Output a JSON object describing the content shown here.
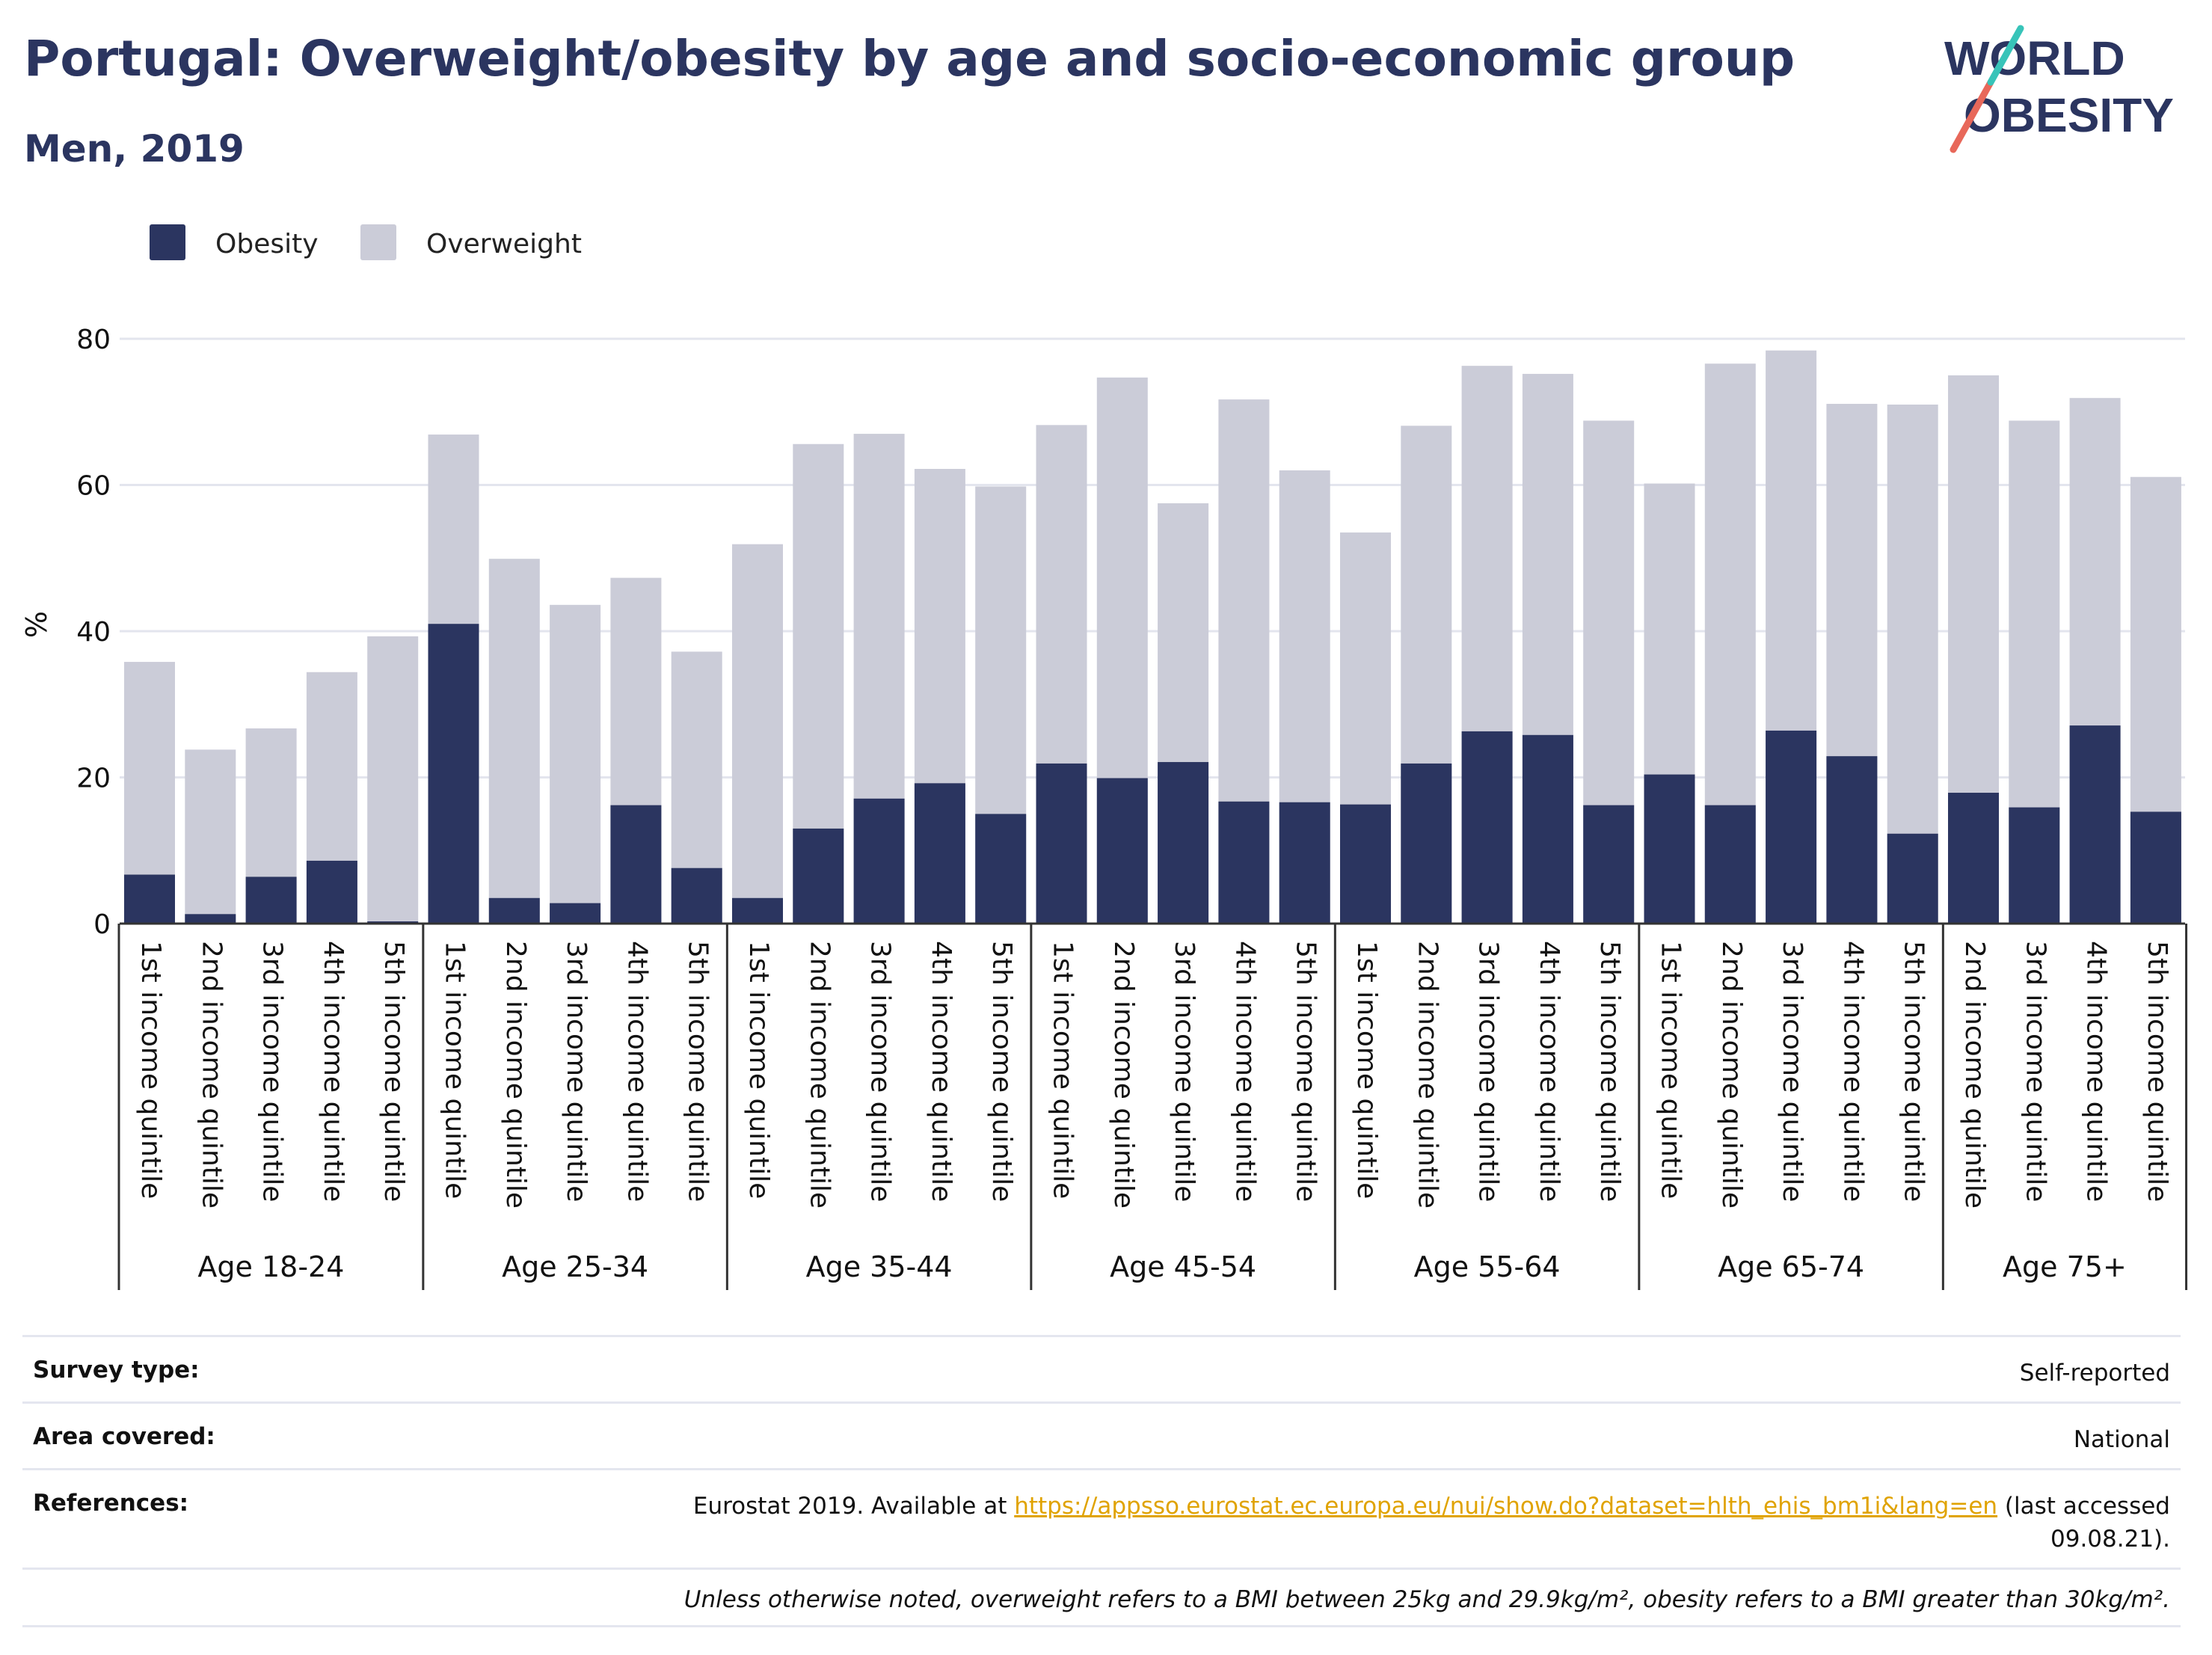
{
  "header": {
    "title": "Portugal: Overweight/obesity by age and socio-economic group",
    "subtitle": "Men, 2019"
  },
  "logo": {
    "line1": "WORLD",
    "line2": "OBESITY"
  },
  "colors": {
    "obesity": "#2b3560",
    "overweight": "#cbccd8",
    "grid": "#e3e5ee",
    "accent_red": "#e8685a",
    "accent_teal": "#38c4b9",
    "link": "#e0a300"
  },
  "chart_data": {
    "type": "bar",
    "stacked": true,
    "ylabel": "%",
    "ylim": [
      0,
      80
    ],
    "yticks": [
      0,
      20,
      40,
      60,
      80
    ],
    "grid": true,
    "legend_position": "top-left",
    "series": [
      {
        "name": "Obesity",
        "color": "#2b3560"
      },
      {
        "name": "Overweight",
        "color": "#cbccd8"
      }
    ],
    "groups": [
      {
        "label": "Age 18-24",
        "bars": [
          {
            "category": "1st income quintile",
            "obesity": 6.7,
            "overweight": 29.1
          },
          {
            "category": "2nd income quintile",
            "obesity": 1.3,
            "overweight": 22.5
          },
          {
            "category": "3rd income quintile",
            "obesity": 6.4,
            "overweight": 20.3
          },
          {
            "category": "4th income quintile",
            "obesity": 8.6,
            "overweight": 25.8
          },
          {
            "category": "5th income quintile",
            "obesity": 0.3,
            "overweight": 39.0
          }
        ]
      },
      {
        "label": "Age 25-34",
        "bars": [
          {
            "category": "1st income quintile",
            "obesity": 41.0,
            "overweight": 25.9
          },
          {
            "category": "2nd income quintile",
            "obesity": 3.5,
            "overweight": 46.4
          },
          {
            "category": "3rd income quintile",
            "obesity": 2.8,
            "overweight": 40.8
          },
          {
            "category": "4th income quintile",
            "obesity": 16.2,
            "overweight": 31.1
          },
          {
            "category": "5th income quintile",
            "obesity": 7.6,
            "overweight": 29.6
          }
        ]
      },
      {
        "label": "Age 35-44",
        "bars": [
          {
            "category": "1st income quintile",
            "obesity": 3.5,
            "overweight": 48.4
          },
          {
            "category": "2nd income quintile",
            "obesity": 13.0,
            "overweight": 52.6
          },
          {
            "category": "3rd income quintile",
            "obesity": 17.1,
            "overweight": 49.9
          },
          {
            "category": "4th income quintile",
            "obesity": 19.2,
            "overweight": 43.0
          },
          {
            "category": "5th income quintile",
            "obesity": 15.0,
            "overweight": 44.8
          }
        ]
      },
      {
        "label": "Age 45-54",
        "bars": [
          {
            "category": "1st income quintile",
            "obesity": 21.9,
            "overweight": 46.3
          },
          {
            "category": "2nd income quintile",
            "obesity": 19.9,
            "overweight": 54.8
          },
          {
            "category": "3rd income quintile",
            "obesity": 22.1,
            "overweight": 35.4
          },
          {
            "category": "4th income quintile",
            "obesity": 16.7,
            "overweight": 55.0
          },
          {
            "category": "5th income quintile",
            "obesity": 16.6,
            "overweight": 45.4
          }
        ]
      },
      {
        "label": "Age 55-64",
        "bars": [
          {
            "category": "1st income quintile",
            "obesity": 16.3,
            "overweight": 37.2
          },
          {
            "category": "2nd income quintile",
            "obesity": 21.9,
            "overweight": 46.2
          },
          {
            "category": "3rd income quintile",
            "obesity": 26.3,
            "overweight": 50.0
          },
          {
            "category": "4th income quintile",
            "obesity": 25.8,
            "overweight": 49.4
          },
          {
            "category": "5th income quintile",
            "obesity": 16.2,
            "overweight": 52.6
          }
        ]
      },
      {
        "label": "Age 65-74",
        "bars": [
          {
            "category": "1st income quintile",
            "obesity": 20.4,
            "overweight": 39.8
          },
          {
            "category": "2nd income quintile",
            "obesity": 16.2,
            "overweight": 60.4
          },
          {
            "category": "3rd income quintile",
            "obesity": 26.4,
            "overweight": 52.0
          },
          {
            "category": "4th income quintile",
            "obesity": 22.9,
            "overweight": 48.2
          },
          {
            "category": "5th income quintile",
            "obesity": 12.3,
            "overweight": 58.7
          }
        ]
      },
      {
        "label": "Age 75+",
        "bars": [
          {
            "category": "2nd income quintile",
            "obesity": 17.9,
            "overweight": 57.1
          },
          {
            "category": "3rd income quintile",
            "obesity": 15.9,
            "overweight": 52.9
          },
          {
            "category": "4th income quintile",
            "obesity": 27.1,
            "overweight": 44.8
          },
          {
            "category": "5th income quintile",
            "obesity": 15.3,
            "overweight": 45.8
          }
        ]
      }
    ]
  },
  "info": {
    "survey_type_label": "Survey type:",
    "survey_type_value": "Self-reported",
    "area_label": "Area covered:",
    "area_value": "National",
    "references_label": "References:",
    "references_prefix": "Eurostat 2019. Available at ",
    "references_link": "https://appsso.eurostat.ec.europa.eu/nui/show.do?dataset=hlth_ehis_bm1i&lang=en",
    "references_suffix": " (last accessed 09.08.21).",
    "note": "Unless otherwise noted, overweight refers to a BMI between 25kg and 29.9kg/m², obesity refers to a BMI greater than 30kg/m²."
  }
}
